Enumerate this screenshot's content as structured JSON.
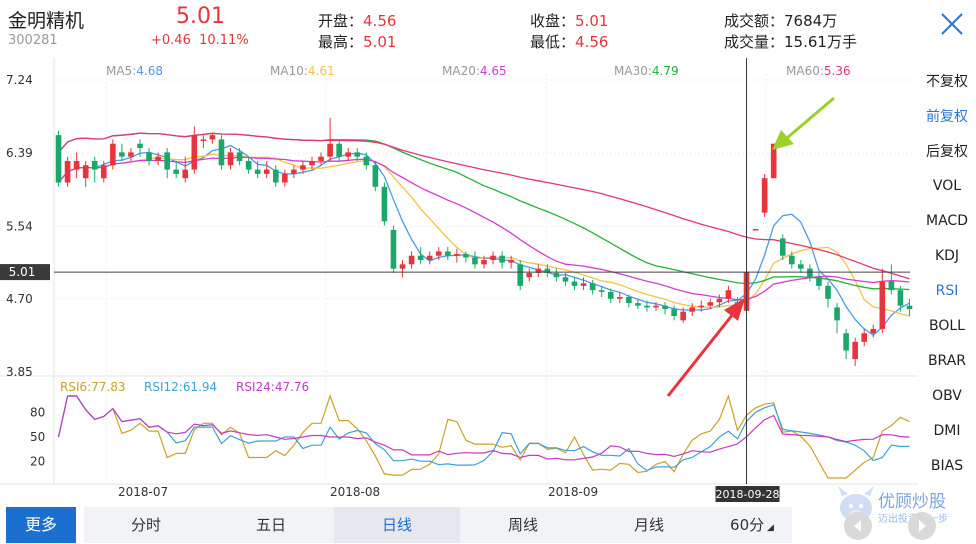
{
  "stock": {
    "name": "金明精机",
    "code": "300281",
    "price": "5.01",
    "change": "+0.46",
    "change_pct": "10.11%"
  },
  "quote": {
    "open_label": "开盘：",
    "open": "4.56",
    "high_label": "最高：",
    "high": "5.01",
    "close_label": "收盘：",
    "close": "5.01",
    "low_label": "最低：",
    "low": "4.56",
    "amount_label": "成交额：",
    "amount": "7684万",
    "volume_label": "成交量：",
    "volume": "15.61万手"
  },
  "ma_legend": [
    {
      "label": "MA5:",
      "value": "4.68",
      "color": "#4c9be8"
    },
    {
      "label": "MA10:",
      "value": "4.61",
      "color": "#f5c242"
    },
    {
      "label": "MA20:",
      "value": "4.65",
      "color": "#d63bd6"
    },
    {
      "label": "MA30:",
      "value": "4.79",
      "color": "#22b33a"
    },
    {
      "label": "MA60:",
      "value": "5.36",
      "color": "#e8347c"
    }
  ],
  "rsi_legend": [
    {
      "label": "RSI6:",
      "value": "77.83",
      "color": "#c9a227"
    },
    {
      "label": "RSI12:",
      "value": "61.94",
      "color": "#3aa3d6"
    },
    {
      "label": "RSI24:",
      "value": "47.76",
      "color": "#c43ac4"
    }
  ],
  "right_panel": {
    "items": [
      "不复权",
      "前复权",
      "后复权",
      "VOL",
      "MACD",
      "KDJ",
      "RSI",
      "BOLL",
      "BRAR",
      "OBV",
      "DMI",
      "BIAS"
    ],
    "active": [
      "前复权",
      "RSI"
    ]
  },
  "bottom_bar": {
    "more": "更多",
    "tabs": [
      "分时",
      "五日",
      "日线",
      "周线",
      "月线",
      "60分"
    ],
    "active_tab": "日线"
  },
  "watermark": {
    "title": "优顾炒股",
    "subtitle": "迈出投资第一步"
  },
  "colors": {
    "up": "#e8343c",
    "down": "#1aa86a",
    "accent": "#1a6fcf"
  },
  "chart_data": {
    "type": "candlestick",
    "price_axis": {
      "ticks": [
        "7.24",
        "6.39",
        "5.54",
        "4.70",
        "3.85"
      ],
      "current": "5.01",
      "ylim": [
        3.85,
        7.24
      ]
    },
    "rsi_axis": {
      "ticks": [
        "80",
        "50",
        "20"
      ]
    },
    "date_ticks": [
      "2018-07",
      "2018-08",
      "2018-09"
    ],
    "cursor_date": "2018-09-28",
    "candles": [
      [
        6.6,
        6.05,
        6.65,
        6.0
      ],
      [
        6.05,
        6.3,
        6.35,
        6.0
      ],
      [
        6.2,
        6.3,
        6.4,
        6.1
      ],
      [
        6.1,
        6.25,
        6.3,
        6.0
      ],
      [
        6.3,
        6.2,
        6.35,
        6.05
      ],
      [
        6.1,
        6.25,
        6.3,
        6.05
      ],
      [
        6.25,
        6.5,
        6.55,
        6.2
      ],
      [
        6.4,
        6.35,
        6.5,
        6.3
      ],
      [
        6.35,
        6.4,
        6.45,
        6.3
      ],
      [
        6.5,
        6.45,
        6.55,
        6.35
      ],
      [
        6.4,
        6.3,
        6.45,
        6.25
      ],
      [
        6.3,
        6.35,
        6.4,
        6.25
      ],
      [
        6.4,
        6.2,
        6.45,
        6.1
      ],
      [
        6.2,
        6.15,
        6.3,
        6.1
      ],
      [
        6.1,
        6.2,
        6.35,
        6.05
      ],
      [
        6.2,
        6.6,
        6.7,
        6.15
      ],
      [
        6.55,
        6.55,
        6.6,
        6.45
      ],
      [
        6.55,
        6.6,
        6.62,
        6.5
      ],
      [
        6.55,
        6.25,
        6.6,
        6.2
      ],
      [
        6.25,
        6.4,
        6.45,
        6.2
      ],
      [
        6.4,
        6.3,
        6.45,
        6.25
      ],
      [
        6.3,
        6.2,
        6.35,
        6.15
      ],
      [
        6.2,
        6.15,
        6.3,
        6.1
      ],
      [
        6.15,
        6.2,
        6.3,
        6.1
      ],
      [
        6.2,
        6.05,
        6.25,
        6.0
      ],
      [
        6.05,
        6.15,
        6.2,
        6.0
      ],
      [
        6.15,
        6.2,
        6.25,
        6.1
      ],
      [
        6.2,
        6.25,
        6.3,
        6.15
      ],
      [
        6.25,
        6.3,
        6.35,
        6.2
      ],
      [
        6.3,
        6.35,
        6.4,
        6.25
      ],
      [
        6.35,
        6.5,
        6.8,
        6.3
      ],
      [
        6.5,
        6.35,
        6.55,
        6.3
      ],
      [
        6.35,
        6.4,
        6.45,
        6.3
      ],
      [
        6.4,
        6.35,
        6.45,
        6.3
      ],
      [
        6.35,
        6.25,
        6.4,
        6.2
      ],
      [
        6.25,
        6.0,
        6.3,
        5.95
      ],
      [
        6.0,
        5.6,
        6.05,
        5.55
      ],
      [
        5.5,
        5.05,
        5.55,
        5.0
      ],
      [
        5.05,
        5.1,
        5.15,
        4.95
      ],
      [
        5.1,
        5.2,
        5.25,
        5.05
      ],
      [
        5.2,
        5.15,
        5.3,
        5.1
      ],
      [
        5.15,
        5.2,
        5.25,
        5.1
      ],
      [
        5.2,
        5.25,
        5.3,
        5.15
      ],
      [
        5.25,
        5.2,
        5.3,
        5.15
      ],
      [
        5.2,
        5.22,
        5.28,
        5.12
      ],
      [
        5.22,
        5.18,
        5.25,
        5.12
      ],
      [
        5.18,
        5.1,
        5.25,
        5.05
      ],
      [
        5.1,
        5.15,
        5.2,
        5.05
      ],
      [
        5.15,
        5.2,
        5.25,
        5.1
      ],
      [
        5.2,
        5.12,
        5.25,
        5.05
      ],
      [
        5.12,
        5.15,
        5.2,
        5.05
      ],
      [
        5.1,
        4.85,
        5.15,
        4.8
      ],
      [
        4.95,
        5.0,
        5.05,
        4.9
      ],
      [
        5.0,
        5.05,
        5.1,
        4.95
      ],
      [
        5.05,
        5.0,
        5.1,
        4.95
      ],
      [
        5.0,
        4.95,
        5.05,
        4.9
      ],
      [
        4.95,
        4.9,
        5.0,
        4.85
      ],
      [
        4.9,
        4.85,
        4.95,
        4.8
      ],
      [
        4.85,
        4.88,
        4.95,
        4.8
      ],
      [
        4.88,
        4.8,
        4.92,
        4.75
      ],
      [
        4.8,
        4.78,
        4.85,
        4.72
      ],
      [
        4.78,
        4.7,
        4.82,
        4.65
      ],
      [
        4.7,
        4.72,
        4.78,
        4.65
      ],
      [
        4.72,
        4.65,
        4.75,
        4.6
      ],
      [
        4.65,
        4.62,
        4.7,
        4.58
      ],
      [
        4.62,
        4.6,
        4.68,
        4.55
      ],
      [
        4.6,
        4.62,
        4.66,
        4.56
      ],
      [
        4.62,
        4.58,
        4.66,
        4.52
      ],
      [
        4.58,
        4.5,
        4.62,
        4.45
      ],
      [
        4.45,
        4.55,
        4.6,
        4.42
      ],
      [
        4.55,
        4.6,
        4.65,
        4.5
      ],
      [
        4.6,
        4.62,
        4.68,
        4.55
      ],
      [
        4.62,
        4.66,
        4.7,
        4.58
      ],
      [
        4.66,
        4.7,
        4.75,
        4.6
      ],
      [
        4.7,
        4.8,
        4.85,
        4.65
      ],
      [
        4.66,
        4.62,
        4.72,
        4.58
      ],
      [
        4.56,
        5.01,
        5.01,
        4.56
      ],
      [
        5.51,
        5.51,
        5.51,
        5.51
      ],
      [
        5.7,
        6.1,
        6.15,
        5.65
      ],
      [
        6.1,
        6.5,
        6.5,
        6.1
      ],
      [
        5.4,
        5.2,
        5.45,
        5.15
      ],
      [
        5.2,
        5.1,
        5.25,
        5.05
      ],
      [
        5.1,
        5.05,
        5.15,
        5.0
      ],
      [
        5.05,
        4.95,
        5.1,
        4.9
      ],
      [
        4.95,
        4.85,
        5.0,
        4.8
      ],
      [
        4.85,
        4.7,
        4.9,
        4.6
      ],
      [
        4.6,
        4.45,
        4.65,
        4.3
      ],
      [
        4.3,
        4.1,
        4.35,
        4.0
      ],
      [
        4.0,
        4.2,
        4.25,
        3.92
      ],
      [
        4.2,
        4.3,
        4.35,
        4.15
      ],
      [
        4.3,
        4.35,
        4.4,
        4.25
      ],
      [
        4.35,
        4.9,
        5.05,
        4.3
      ],
      [
        4.9,
        4.8,
        5.1,
        4.75
      ],
      [
        4.8,
        4.62,
        4.85,
        4.55
      ],
      [
        4.62,
        4.58,
        4.7,
        4.5
      ]
    ]
  }
}
